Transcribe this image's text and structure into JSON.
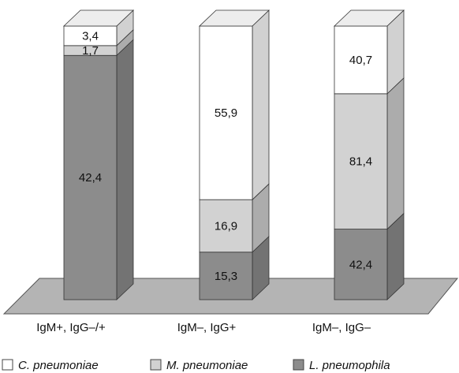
{
  "chart_data": {
    "type": "bar",
    "stacked": true,
    "style": "3d",
    "categories": [
      "IgM+, IgG–/+",
      "IgM–, IgG+",
      "IgM–, IgG–"
    ],
    "series": [
      {
        "name": "L. pneumophila",
        "color": "#8c8c8c",
        "values": [
          42.4,
          15.3,
          42.4
        ],
        "labels": [
          "42,4",
          "15,3",
          "42,4"
        ]
      },
      {
        "name": "M. pneumoniae",
        "color": "#d2d2d2",
        "values": [
          1.7,
          16.9,
          81.4
        ],
        "labels": [
          "1,7",
          "16,9",
          "81,4"
        ]
      },
      {
        "name": "C. pneumoniae",
        "color": "#ffffff",
        "values": [
          3.4,
          55.9,
          40.7
        ],
        "labels": [
          "3,4",
          "55,9",
          "40,7"
        ]
      }
    ],
    "legend": {
      "position": "bottom"
    },
    "floor_color": "#b4b4b4",
    "grid": false
  }
}
